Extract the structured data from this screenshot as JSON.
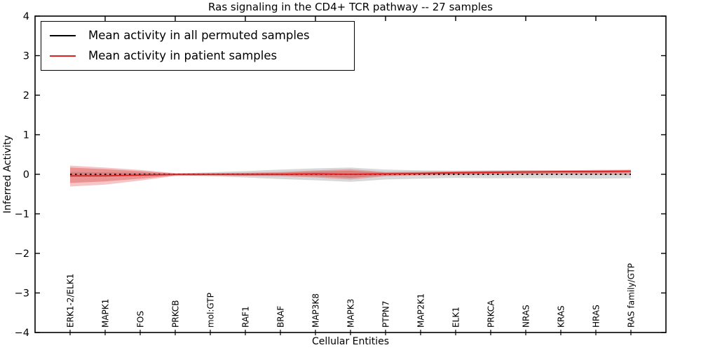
{
  "chart_data": {
    "type": "line",
    "title": "Ras signaling in the CD4+ TCR pathway -- 27 samples",
    "xlabel": "Cellular Entities",
    "ylabel": "Inferred Activity",
    "ylim": [
      -4,
      4
    ],
    "yticks": [
      -4,
      -3,
      -2,
      -1,
      0,
      1,
      2,
      3,
      4
    ],
    "grid": false,
    "legend_position": "upper left",
    "categories": [
      "ERK1-2/ELK1",
      "MAPK1",
      "FOS",
      "PRKCB",
      "mol:GTP",
      "RAF1",
      "BRAF",
      "MAP3K8",
      "MAPK3",
      "PTPN7",
      "MAP2K1",
      "ELK1",
      "PRKCA",
      "NRAS",
      "KRAS",
      "HRAS",
      "RAS family/GTP"
    ],
    "series": [
      {
        "name": "Mean activity in all permuted samples",
        "color": "#000000",
        "style": "dashed",
        "values": [
          0,
          0,
          0,
          0,
          0,
          0,
          0,
          0,
          0,
          0,
          0,
          0,
          0,
          0,
          0,
          0,
          0
        ]
      },
      {
        "name": "Mean activity in patient samples",
        "color": "#e02020",
        "style": "solid",
        "values": [
          -0.04,
          -0.04,
          -0.02,
          -0.005,
          -0.005,
          -0.005,
          0.0,
          0.01,
          0.0,
          0.01,
          0.02,
          0.04,
          0.05,
          0.06,
          0.07,
          0.07,
          0.08
        ]
      }
    ],
    "bands": [
      {
        "name": "permuted-samples-std",
        "color": "#999999",
        "opacity": 0.38,
        "upper": [
          0.06,
          0.05,
          0.04,
          0.02,
          0.05,
          0.08,
          0.12,
          0.15,
          0.17,
          0.12,
          0.1,
          0.09,
          0.1,
          0.1,
          0.1,
          0.11,
          0.1
        ],
        "lower": [
          -0.06,
          -0.05,
          -0.04,
          -0.02,
          -0.05,
          -0.08,
          -0.12,
          -0.15,
          -0.19,
          -0.13,
          -0.11,
          -0.09,
          -0.1,
          -0.1,
          -0.1,
          -0.11,
          -0.1
        ]
      },
      {
        "name": "patient-samples-std-outer",
        "color": "#e03030",
        "opacity": 0.28,
        "upper": [
          0.22,
          0.17,
          0.11,
          0.03,
          0.03,
          0.04,
          0.06,
          0.1,
          0.13,
          0.06,
          0.07,
          0.08,
          0.09,
          0.1,
          0.1,
          0.11,
          0.12
        ],
        "lower": [
          -0.31,
          -0.26,
          -0.16,
          -0.04,
          -0.03,
          -0.04,
          -0.05,
          -0.08,
          -0.13,
          -0.05,
          -0.03,
          -0.02,
          -0.01,
          -0.01,
          -0.01,
          -0.01,
          -0.02
        ]
      },
      {
        "name": "patient-samples-std-inner",
        "color": "#d02020",
        "opacity": 0.3,
        "upper": [
          0.17,
          0.13,
          0.08,
          0.02,
          0.02,
          0.03,
          0.04,
          0.07,
          0.09,
          0.04,
          0.05,
          0.06,
          0.07,
          0.08,
          0.08,
          0.09,
          0.1
        ],
        "lower": [
          -0.22,
          -0.18,
          -0.11,
          -0.03,
          -0.02,
          -0.03,
          -0.03,
          -0.05,
          -0.09,
          -0.03,
          -0.01,
          0.0,
          0.01,
          0.02,
          0.03,
          0.03,
          0.04
        ]
      }
    ]
  }
}
